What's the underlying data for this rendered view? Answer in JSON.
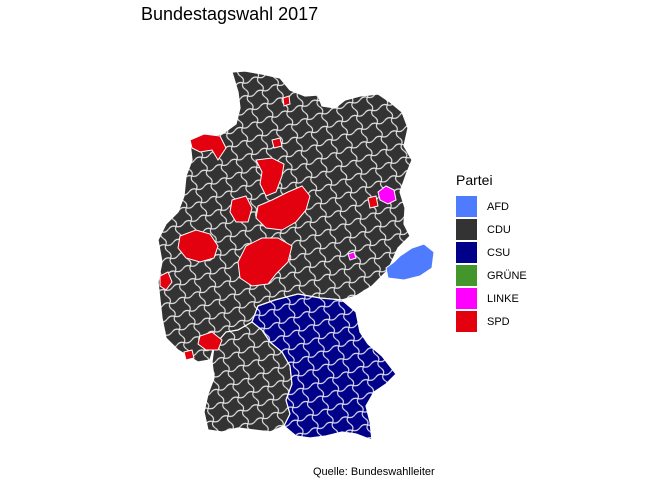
{
  "title": "Bundestagswahl 2017",
  "caption": "Quelle: Bundeswahlleiter",
  "legend": {
    "title": "Partei",
    "items": [
      {
        "label": "AFD",
        "color": "#4f7cff"
      },
      {
        "label": "CDU",
        "color": "#333333"
      },
      {
        "label": "CSU",
        "color": "#000089"
      },
      {
        "label": "GRÜNE",
        "color": "#43962b"
      },
      {
        "label": "LINKE",
        "color": "#ff00ff"
      },
      {
        "label": "SPD",
        "color": "#e3000f"
      }
    ]
  },
  "map": {
    "district_border_color": "#ffffff",
    "regions": [
      {
        "party": "CDU",
        "area": "north-and-east"
      },
      {
        "party": "CDU",
        "area": "west"
      },
      {
        "party": "CDU",
        "area": "southwest"
      },
      {
        "party": "CSU",
        "area": "bavaria"
      },
      {
        "party": "SPD",
        "area": "east-frisia"
      },
      {
        "party": "SPD",
        "area": "bremen-oldenburg"
      },
      {
        "party": "SPD",
        "area": "hannover"
      },
      {
        "party": "SPD",
        "area": "lower-saxony-south"
      },
      {
        "party": "SPD",
        "area": "ruhr"
      },
      {
        "party": "SPD",
        "area": "hesse-north"
      },
      {
        "party": "SPD",
        "area": "palatinate"
      },
      {
        "party": "SPD",
        "area": "saarland"
      },
      {
        "party": "SPD",
        "area": "hamburg"
      },
      {
        "party": "AFD",
        "area": "saxony-east"
      },
      {
        "party": "LINKE",
        "area": "berlin"
      },
      {
        "party": "LINKE",
        "area": "leipzig"
      }
    ]
  }
}
